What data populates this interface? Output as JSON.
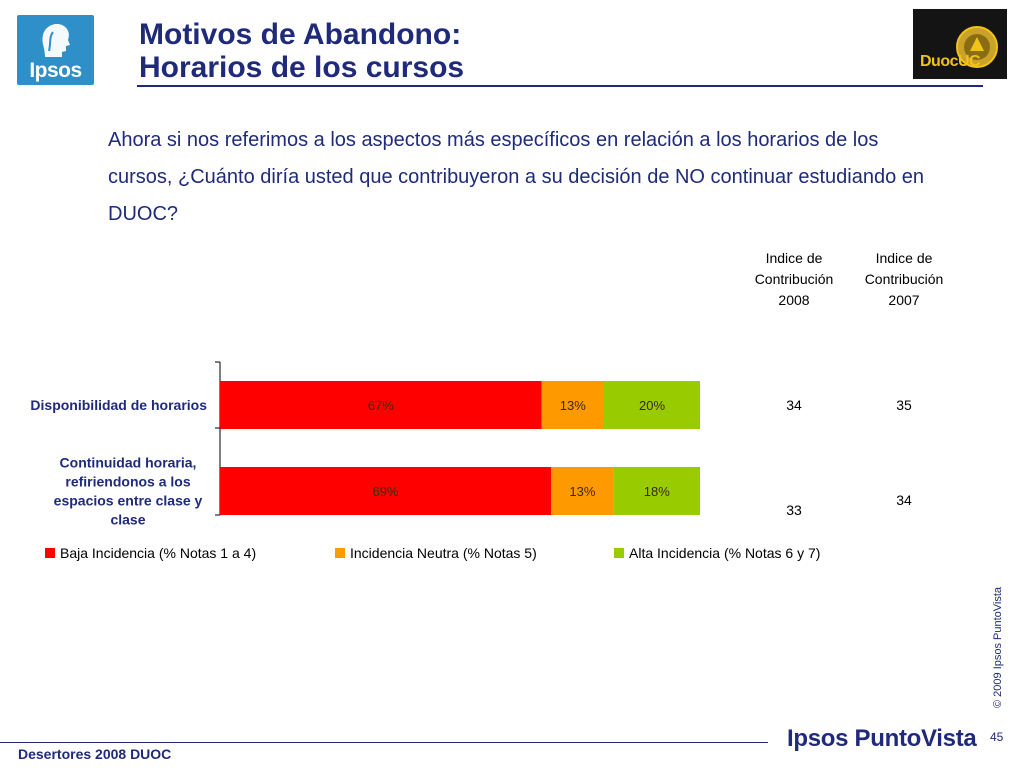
{
  "logos": {
    "ipsos_text": "Ipsos",
    "duoc_text": "DuocUC"
  },
  "title": {
    "line1": "Motivos de Abandono:",
    "line2": "Horarios de los cursos"
  },
  "question": "Ahora si nos referimos a los aspectos más específicos en relación a los horarios de los cursos, ¿Cuánto diría usted que contribuyeron a su decisión de NO continuar estudiando en DUOC?",
  "index_columns": [
    {
      "line1": "Indice de",
      "line2": "Contribución",
      "line3": "2008"
    },
    {
      "line1": "Indice de",
      "line2": "Contribución",
      "line3": "2007"
    }
  ],
  "chart_data": {
    "type": "bar",
    "orientation": "horizontal",
    "stacked": true,
    "xlim": [
      0,
      100
    ],
    "categories": [
      {
        "lines": [
          "Disponibilidad de horarios"
        ]
      },
      {
        "lines": [
          "Continuidad horaria,",
          "refiriendonos a los",
          "espacios entre clase y",
          "clase"
        ]
      }
    ],
    "series": [
      {
        "name": "Baja Incidencia (% Notas 1 a 4)",
        "color": "#ff0000",
        "values": [
          67,
          69
        ],
        "labels": [
          "67%",
          "69%"
        ]
      },
      {
        "name": "Incidencia Neutra (% Notas 5)",
        "color": "#ff9900",
        "values": [
          13,
          13
        ],
        "labels": [
          "13%",
          "13%"
        ]
      },
      {
        "name": "Alta Incidencia (% Notas 6 y 7)",
        "color": "#99cc00",
        "values": [
          20,
          18
        ],
        "labels": [
          "20%",
          "18%"
        ]
      }
    ],
    "legend": "bottom"
  },
  "index_values": [
    {
      "y2008": "34",
      "y2007": "35"
    },
    {
      "y2008": "33",
      "y2007": "34"
    }
  ],
  "footer": {
    "left": "Desertores 2008 DUOC",
    "brand": "Ipsos PuntoVista",
    "page": "45",
    "copyright": "© 2009 Ipsos PuntoVista"
  }
}
